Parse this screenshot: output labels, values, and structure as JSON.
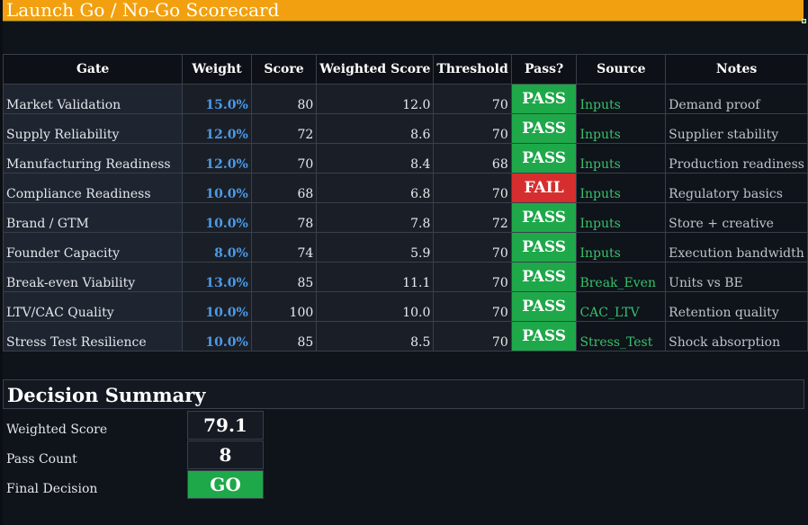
{
  "title": "Launch Go / No-Go Scorecard",
  "columns": [
    "Gate",
    "Weight",
    "Score",
    "Weighted Score",
    "Threshold",
    "Pass?",
    "Source",
    "Notes"
  ],
  "rows": [
    {
      "gate": "Market Validation",
      "weight": "15.0%",
      "score": "80",
      "weighted": "12.0",
      "threshold": "70",
      "pass": "PASS",
      "source": "Inputs",
      "notes": "Demand proof"
    },
    {
      "gate": "Supply Reliability",
      "weight": "12.0%",
      "score": "72",
      "weighted": "8.6",
      "threshold": "70",
      "pass": "PASS",
      "source": "Inputs",
      "notes": "Supplier stability"
    },
    {
      "gate": "Manufacturing Readiness",
      "weight": "12.0%",
      "score": "70",
      "weighted": "8.4",
      "threshold": "68",
      "pass": "PASS",
      "source": "Inputs",
      "notes": "Production readiness"
    },
    {
      "gate": "Compliance Readiness",
      "weight": "10.0%",
      "score": "68",
      "weighted": "6.8",
      "threshold": "70",
      "pass": "FAIL",
      "source": "Inputs",
      "notes": "Regulatory basics"
    },
    {
      "gate": "Brand / GTM",
      "weight": "10.0%",
      "score": "78",
      "weighted": "7.8",
      "threshold": "72",
      "pass": "PASS",
      "source": "Inputs",
      "notes": "Store + creative"
    },
    {
      "gate": "Founder Capacity",
      "weight": "8.0%",
      "score": "74",
      "weighted": "5.9",
      "threshold": "70",
      "pass": "PASS",
      "source": "Inputs",
      "notes": "Execution bandwidth"
    },
    {
      "gate": "Break-even Viability",
      "weight": "13.0%",
      "score": "85",
      "weighted": "11.1",
      "threshold": "70",
      "pass": "PASS",
      "source": "Break_Even",
      "notes": "Units vs BE"
    },
    {
      "gate": "LTV/CAC Quality",
      "weight": "10.0%",
      "score": "100",
      "weighted": "10.0",
      "threshold": "70",
      "pass": "PASS",
      "source": "CAC_LTV",
      "notes": "Retention quality"
    },
    {
      "gate": "Stress Test Resilience",
      "weight": "10.0%",
      "score": "85",
      "weighted": "8.5",
      "threshold": "70",
      "pass": "PASS",
      "source": "Stress_Test",
      "notes": "Shock absorption"
    }
  ],
  "summary": {
    "title": "Decision Summary",
    "weighted_score_label": "Weighted Score",
    "weighted_score_value": "79.1",
    "pass_count_label": "Pass Count",
    "pass_count_value": "8",
    "final_decision_label": "Final Decision",
    "final_decision_value": "GO"
  },
  "colors": {
    "banner": "#f2a00f",
    "pass": "#1ea84a",
    "fail": "#d62e2e",
    "weight_text": "#4c9ae8",
    "source_text": "#37c26b",
    "background": "#0f131a"
  }
}
